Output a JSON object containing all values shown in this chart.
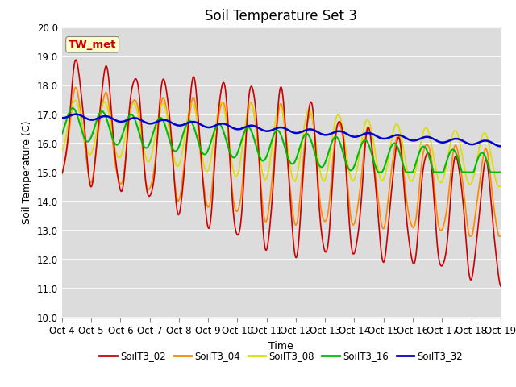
{
  "title": "Soil Temperature Set 3",
  "xlabel": "Time",
  "ylabel": "Soil Temperature (C)",
  "ylim": [
    10.0,
    20.0
  ],
  "yticks": [
    10.0,
    11.0,
    12.0,
    13.0,
    14.0,
    15.0,
    16.0,
    17.0,
    18.0,
    19.0,
    20.0
  ],
  "xtick_labels": [
    "Oct 4",
    "Oct 5",
    "Oct 6",
    "Oct 7",
    "Oct 8",
    "Oct 9",
    "Oct 10",
    "Oct 11",
    "Oct 12",
    "Oct 13",
    "Oct 14",
    "Oct 15",
    "Oct 16",
    "Oct 17",
    "Oct 18",
    "Oct 19"
  ],
  "series_colors": {
    "SoilT3_02": "#cc0000",
    "SoilT3_04": "#ff8800",
    "SoilT3_08": "#dddd00",
    "SoilT3_16": "#00bb00",
    "SoilT3_32": "#0000cc"
  },
  "legend_labels": [
    "SoilT3_02",
    "SoilT3_04",
    "SoilT3_08",
    "SoilT3_16",
    "SoilT3_32"
  ],
  "annotation_text": "TW_met",
  "annotation_color": "#cc0000",
  "annotation_bg": "#ffffcc",
  "background_color": "#dcdcdc",
  "grid_color": "#ffffff",
  "title_fontsize": 12,
  "axis_fontsize": 9,
  "tick_fontsize": 8.5
}
